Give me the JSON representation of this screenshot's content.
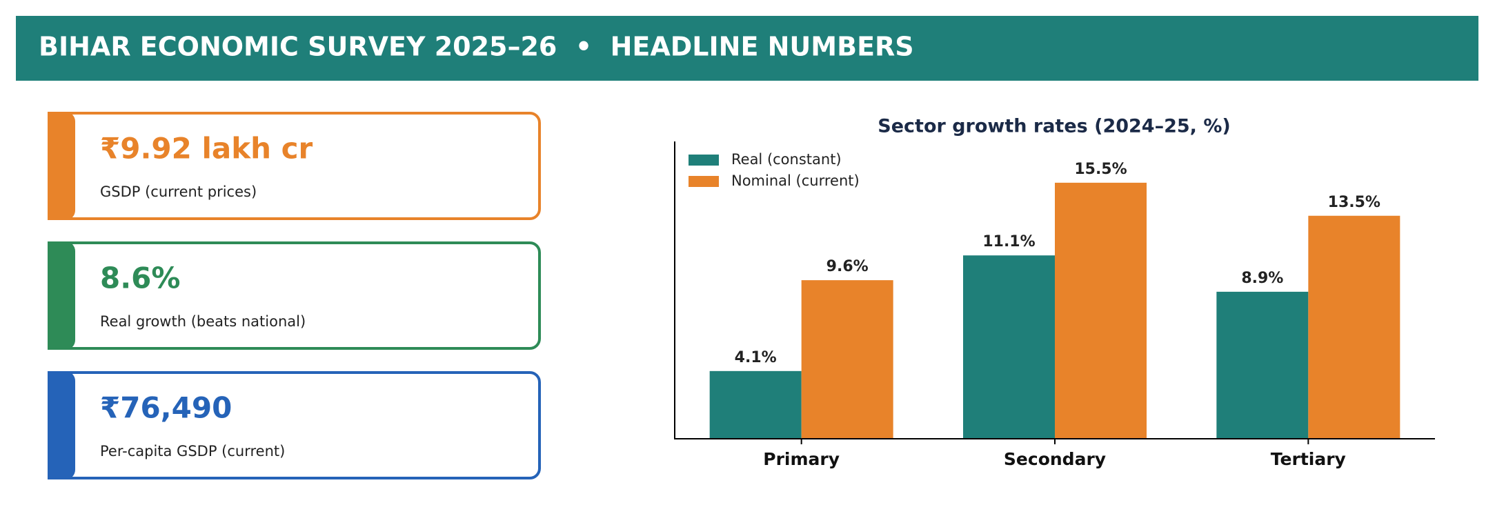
{
  "header": {
    "title": "BIHAR ECONOMIC SURVEY 2025–26  •  HEADLINE NUMBERS"
  },
  "cards": [
    {
      "value": "₹9.92 lakh cr",
      "label": "GSDP (current prices)",
      "color": "#e8832a"
    },
    {
      "value": "8.6%",
      "label": "Real growth (beats national)",
      "color": "#2e8b57"
    },
    {
      "value": "₹76,490",
      "label": "Per-capita GSDP (current)",
      "color": "#2563b8"
    }
  ],
  "chart_data": {
    "type": "bar",
    "title": "Sector growth rates (2024–25, %)",
    "categories": [
      "Primary",
      "Secondary",
      "Tertiary"
    ],
    "series": [
      {
        "name": "Real (constant)",
        "color": "#1f7f79",
        "values": [
          4.1,
          11.1,
          8.9
        ],
        "value_labels": [
          "4.1%",
          "11.1%",
          "8.9%"
        ]
      },
      {
        "name": "Nominal (current)",
        "color": "#e8832a",
        "values": [
          9.6,
          15.5,
          13.5
        ],
        "value_labels": [
          "9.6%",
          "15.5%",
          "13.5%"
        ]
      }
    ],
    "ylim": [
      0,
      18
    ],
    "legend": "upper-left"
  }
}
